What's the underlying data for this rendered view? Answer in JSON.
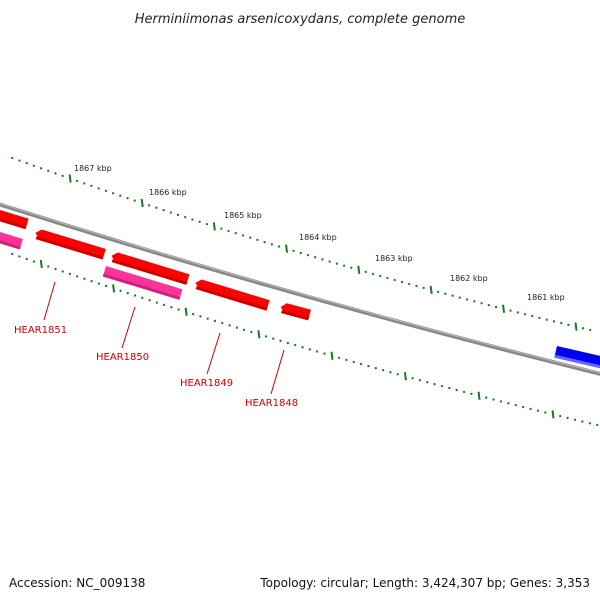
{
  "title": "Herminiimonas arsenicoxydans, complete genome",
  "accession": "Accession: NC_009138",
  "summary": "Topology: circular; Length: 3,424,307 bp; Genes: 3,353",
  "kbp_labels": [
    "1867 kbp",
    "1866 kbp",
    "1865 kbp",
    "1864 kbp",
    "1863 kbp",
    "1862 kbp",
    "1861 kbp"
  ],
  "genes": [
    {
      "label": "HEAR1851"
    },
    {
      "label": "HEAR1850"
    },
    {
      "label": "HEAR1849"
    },
    {
      "label": "HEAR1848"
    }
  ],
  "colors": {
    "cds": "#ff0000",
    "cds_dark": "#cc0000",
    "rna": "#ff3399",
    "other": "#0000ee",
    "backbone": "#888888",
    "ticks": "#1a7a1a"
  }
}
